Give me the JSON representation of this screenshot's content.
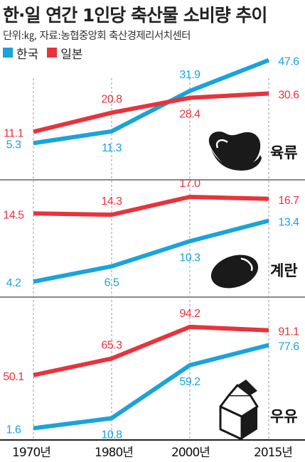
{
  "title": "한·일 연간 1인당 축산물 소비량 추이",
  "subtitle": "단위:㎏, 자료:농협중앙회 축산경제리서치센터",
  "legend": [
    {
      "name": "한국",
      "color": "#1aa3dc"
    },
    {
      "name": "일본",
      "color": "#e8333c"
    }
  ],
  "colors": {
    "korea": "#1aa3dc",
    "japan": "#e8333c",
    "icon": "#1a1a1a",
    "divider": "#444444"
  },
  "chart_data": {
    "type": "line",
    "x": [
      "1970년",
      "1980년",
      "2000년",
      "2015년"
    ],
    "panels": [
      {
        "label": "육류",
        "icon": "meat-icon",
        "ylim": [
          0,
          50
        ],
        "series": [
          {
            "name": "한국",
            "values": [
              5.3,
              11.3,
              31.9,
              47.6
            ],
            "labels": [
              "5.3",
              "11.3",
              "31.9",
              "47.6"
            ]
          },
          {
            "name": "일본",
            "values": [
              11.1,
              20.8,
              28.4,
              30.6
            ],
            "labels": [
              "11.1",
              "20.8",
              "28.4",
              "30.6"
            ]
          }
        ]
      },
      {
        "label": "계란",
        "icon": "egg-icon",
        "ylim": [
          4,
          17
        ],
        "series": [
          {
            "name": "한국",
            "values": [
              4.2,
              6.5,
              10.3,
              13.4
            ],
            "labels": [
              "4.2",
              "6.5",
              "10.3",
              "13.4"
            ]
          },
          {
            "name": "일본",
            "values": [
              14.5,
              14.3,
              17.0,
              16.7
            ],
            "labels": [
              "14.5",
              "14.3",
              "17.0",
              "16.7"
            ]
          }
        ]
      },
      {
        "label": "우유",
        "icon": "milk-carton-icon",
        "ylim": [
          0,
          100
        ],
        "series": [
          {
            "name": "한국",
            "values": [
              1.6,
              10.8,
              59.2,
              77.6
            ],
            "labels": [
              "1.6",
              "10.8",
              "59.2",
              "77.6"
            ]
          },
          {
            "name": "일본",
            "values": [
              50.1,
              65.3,
              94.2,
              91.1
            ],
            "labels": [
              "50.1",
              "65.3",
              "94.2",
              "91.1"
            ]
          }
        ]
      }
    ]
  }
}
